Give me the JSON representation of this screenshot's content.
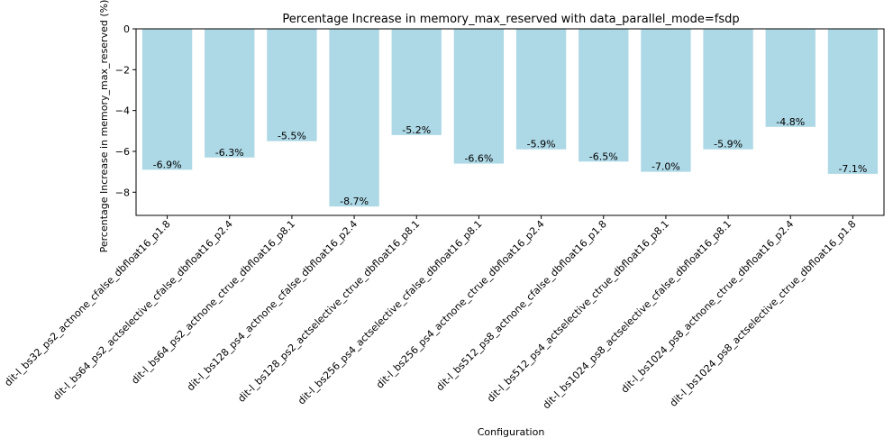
{
  "chart_data": {
    "type": "bar",
    "title": "Percentage Increase in memory_max_reserved with data_parallel_mode=fsdp",
    "xlabel": "Configuration",
    "ylabel": "Percentage Increase in memory_max_reserved (%)",
    "categories": [
      "dit-l_bs32_ps2_actnone_cfalse_dbfloat16_p1.8",
      "dit-l_bs64_ps2_actselective_cfalse_dbfloat16_p2.4",
      "dit-l_bs64_ps2_actnone_ctrue_dbfloat16_p8.1",
      "dit-l_bs128_ps4_actnone_cfalse_dbfloat16_p2.4",
      "dit-l_bs128_ps2_actselective_ctrue_dbfloat16_p8.1",
      "dit-l_bs256_ps4_actselective_cfalse_dbfloat16_p8.1",
      "dit-l_bs256_ps4_actnone_ctrue_dbfloat16_p2.4",
      "dit-l_bs512_ps8_actnone_cfalse_dbfloat16_p1.8",
      "dit-l_bs512_ps4_actselective_ctrue_dbfloat16_p8.1",
      "dit-l_bs1024_ps8_actselective_cfalse_dbfloat16_p8.1",
      "dit-l_bs1024_ps8_actnone_ctrue_dbfloat16_p2.4",
      "dit-l_bs1024_ps8_actselective_ctrue_dbfloat16_p1.8"
    ],
    "values": [
      -6.9,
      -6.3,
      -5.5,
      -8.7,
      -5.2,
      -6.6,
      -5.9,
      -6.5,
      -7.0,
      -5.9,
      -4.8,
      -7.1
    ],
    "data_labels": [
      "-6.9%",
      "-6.3%",
      "-5.5%",
      "-8.7%",
      "-5.2%",
      "-6.6%",
      "-5.9%",
      "-6.5%",
      "-7.0%",
      "-5.9%",
      "-4.8%",
      "-7.1%"
    ],
    "yticks": [
      0,
      -2,
      -4,
      -6,
      -8
    ],
    "ylim": [
      -9.135,
      0
    ],
    "grid": false,
    "legend": "none",
    "bar_color": "#add8e6"
  }
}
